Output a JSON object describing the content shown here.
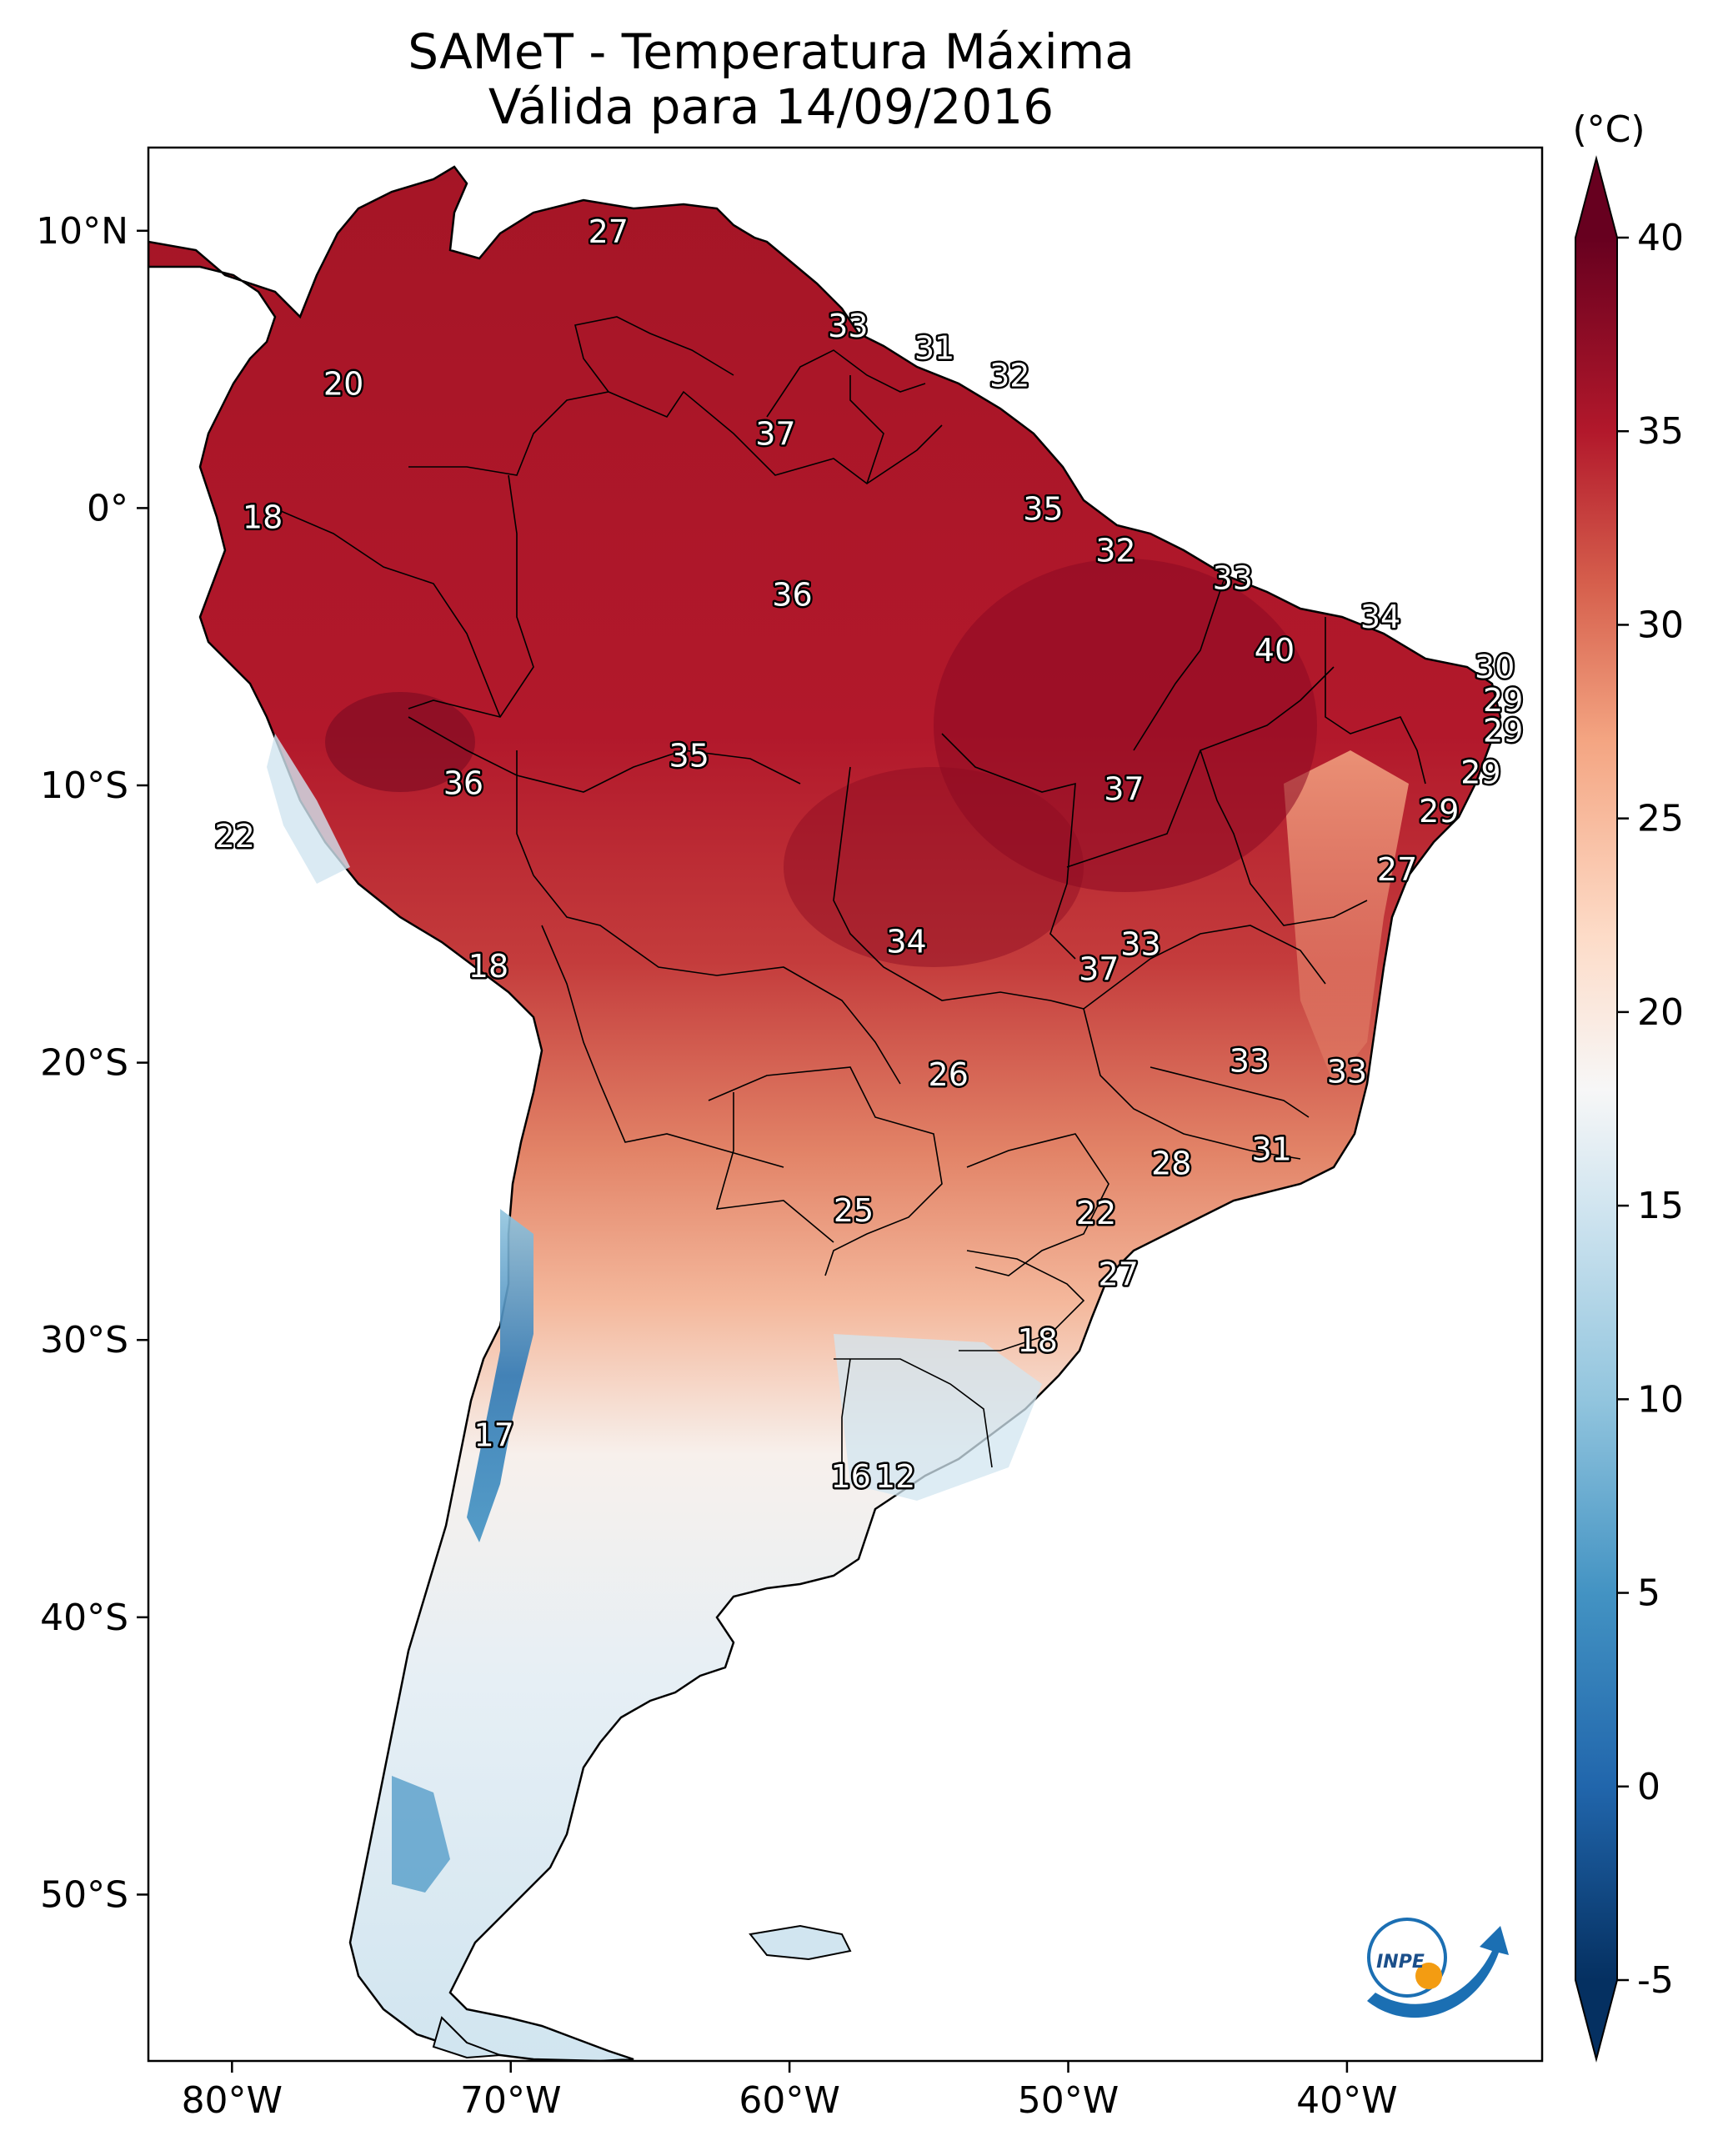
{
  "title": {
    "line1": "SAMeT - Temperatura Máxima",
    "line2": "Válida para 14/09/2016"
  },
  "map": {
    "lon_range": [
      -83,
      -33
    ],
    "lat_range": [
      -56,
      13
    ],
    "lon_ticks": [
      {
        "value": -80,
        "label": "80°W"
      },
      {
        "value": -70,
        "label": "70°W"
      },
      {
        "value": -60,
        "label": "60°W"
      },
      {
        "value": -50,
        "label": "50°W"
      },
      {
        "value": -40,
        "label": "40°W"
      }
    ],
    "lat_ticks": [
      {
        "value": 10,
        "label": "10°N"
      },
      {
        "value": 0,
        "label": "0°"
      },
      {
        "value": -10,
        "label": "10°S"
      },
      {
        "value": -20,
        "label": "20°S"
      },
      {
        "value": -30,
        "label": "30°S"
      },
      {
        "value": -40,
        "label": "40°S"
      },
      {
        "value": -50,
        "label": "50°S"
      }
    ],
    "point_labels": [
      {
        "lon": -66.5,
        "lat": 10.0,
        "text": "27"
      },
      {
        "lon": -76.0,
        "lat": 4.5,
        "text": "20"
      },
      {
        "lon": -57.9,
        "lat": 6.6,
        "text": "33"
      },
      {
        "lon": -54.8,
        "lat": 5.8,
        "text": "31"
      },
      {
        "lon": -52.1,
        "lat": 4.8,
        "text": "32"
      },
      {
        "lon": -60.5,
        "lat": 2.7,
        "text": "37"
      },
      {
        "lon": -78.9,
        "lat": -0.3,
        "text": "18"
      },
      {
        "lon": -50.9,
        "lat": 0.0,
        "text": "35"
      },
      {
        "lon": -48.3,
        "lat": -1.5,
        "text": "32"
      },
      {
        "lon": -59.9,
        "lat": -3.1,
        "text": "36"
      },
      {
        "lon": -44.1,
        "lat": -2.5,
        "text": "33"
      },
      {
        "lon": -38.8,
        "lat": -3.9,
        "text": "34"
      },
      {
        "lon": -42.6,
        "lat": -5.1,
        "text": "40"
      },
      {
        "lon": -34.7,
        "lat": -5.7,
        "text": "30"
      },
      {
        "lon": -34.4,
        "lat": -6.9,
        "text": "29"
      },
      {
        "lon": -34.4,
        "lat": -8.0,
        "text": "29"
      },
      {
        "lon": -35.2,
        "lat": -9.5,
        "text": "29"
      },
      {
        "lon": -63.6,
        "lat": -8.9,
        "text": "35"
      },
      {
        "lon": -71.7,
        "lat": -9.9,
        "text": "36"
      },
      {
        "lon": -48.0,
        "lat": -10.1,
        "text": "37"
      },
      {
        "lon": -36.7,
        "lat": -10.9,
        "text": "29"
      },
      {
        "lon": -79.9,
        "lat": -11.8,
        "text": "22"
      },
      {
        "lon": -38.2,
        "lat": -13.0,
        "text": "27"
      },
      {
        "lon": -70.8,
        "lat": -16.5,
        "text": "18"
      },
      {
        "lon": -55.8,
        "lat": -15.6,
        "text": "34"
      },
      {
        "lon": -47.4,
        "lat": -15.7,
        "text": "33"
      },
      {
        "lon": -48.9,
        "lat": -16.6,
        "text": "37"
      },
      {
        "lon": -43.5,
        "lat": -19.9,
        "text": "33"
      },
      {
        "lon": -54.3,
        "lat": -20.4,
        "text": "26"
      },
      {
        "lon": -40.0,
        "lat": -20.3,
        "text": "33"
      },
      {
        "lon": -42.7,
        "lat": -23.1,
        "text": "31"
      },
      {
        "lon": -46.3,
        "lat": -23.6,
        "text": "28"
      },
      {
        "lon": -57.7,
        "lat": -25.3,
        "text": "25"
      },
      {
        "lon": -49.0,
        "lat": -25.4,
        "text": "22"
      },
      {
        "lon": -48.2,
        "lat": -27.6,
        "text": "27"
      },
      {
        "lon": -51.1,
        "lat": -30.0,
        "text": "18"
      },
      {
        "lon": -70.6,
        "lat": -33.4,
        "text": "17"
      },
      {
        "lon": -57.8,
        "lat": -34.9,
        "text": "16"
      },
      {
        "lon": -56.2,
        "lat": -34.9,
        "text": "12"
      }
    ]
  },
  "colorbar": {
    "unit": "(°C)",
    "min": -5,
    "max": 40,
    "ticks": [
      {
        "value": 40,
        "label": "40"
      },
      {
        "value": 35,
        "label": "35"
      },
      {
        "value": 30,
        "label": "30"
      },
      {
        "value": 25,
        "label": "25"
      },
      {
        "value": 20,
        "label": "20"
      },
      {
        "value": 15,
        "label": "15"
      },
      {
        "value": 10,
        "label": "10"
      },
      {
        "value": 5,
        "label": "5"
      },
      {
        "value": 0,
        "label": "0"
      },
      {
        "value": -5,
        "label": "-5"
      }
    ],
    "stops": [
      {
        "value": -5,
        "color": "#053061"
      },
      {
        "value": 0,
        "color": "#2166ac"
      },
      {
        "value": 5,
        "color": "#4393c3"
      },
      {
        "value": 10,
        "color": "#92c5de"
      },
      {
        "value": 15,
        "color": "#d1e5f0"
      },
      {
        "value": 18,
        "color": "#f7f7f7"
      },
      {
        "value": 22,
        "color": "#fddbc7"
      },
      {
        "value": 27,
        "color": "#f4a582"
      },
      {
        "value": 31,
        "color": "#d6604d"
      },
      {
        "value": 35,
        "color": "#b2182b"
      },
      {
        "value": 40,
        "color": "#67001f"
      }
    ]
  },
  "logo": {
    "text": "INPE"
  }
}
